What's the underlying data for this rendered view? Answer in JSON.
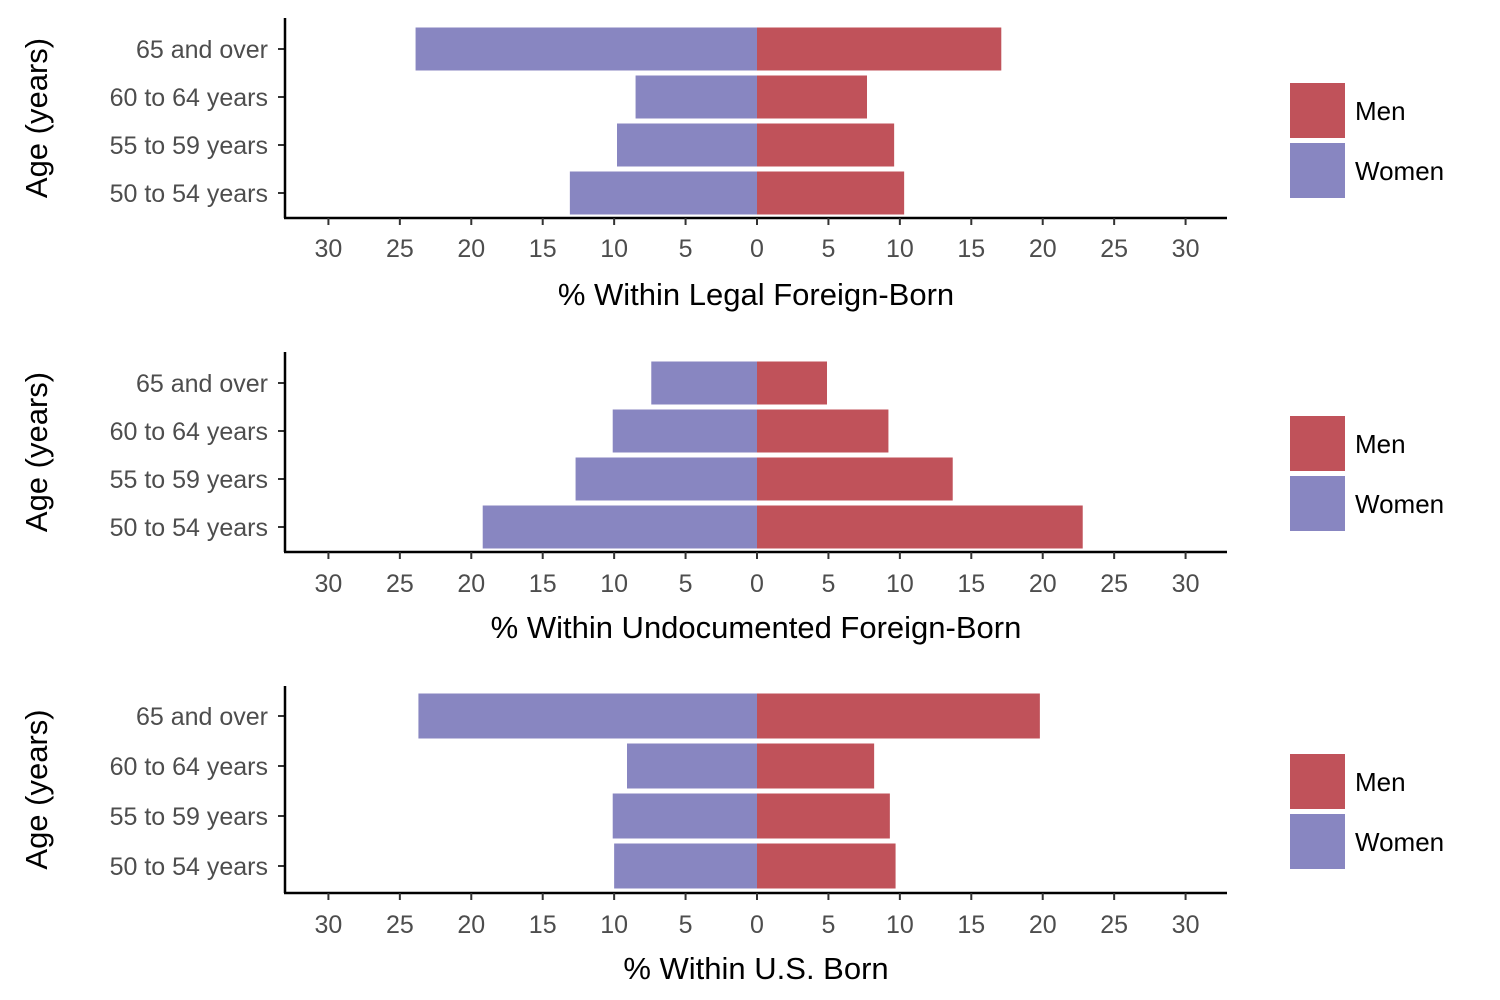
{
  "colors": {
    "men": "#c0525a",
    "women": "#8886c1"
  },
  "chart_data": [
    {
      "type": "bar",
      "orientation": "horizontal-population-pyramid",
      "categories": [
        "50 to 54 years",
        "55 to 59 years",
        "60 to 64 years",
        "65 and over"
      ],
      "series": [
        {
          "name": "Men",
          "values": [
            10.3,
            9.6,
            7.7,
            17.1
          ]
        },
        {
          "name": "Women",
          "values": [
            13.1,
            9.8,
            8.5,
            23.9
          ]
        }
      ],
      "xlabel": "% Within Legal Foreign-Born",
      "ylabel": "Age (years)",
      "xlim": [
        -33,
        33
      ],
      "xticks": [
        -30,
        -25,
        -20,
        -15,
        -10,
        -5,
        0,
        5,
        10,
        15,
        20,
        25,
        30
      ],
      "xtick_labels": [
        "30",
        "25",
        "20",
        "15",
        "10",
        "5",
        "0",
        "5",
        "10",
        "15",
        "20",
        "25",
        "30"
      ],
      "legend": [
        "Men",
        "Women"
      ],
      "legend_position": "right",
      "grid": false
    },
    {
      "type": "bar",
      "orientation": "horizontal-population-pyramid",
      "categories": [
        "50 to 54 years",
        "55 to 59 years",
        "60 to 64 years",
        "65 and over"
      ],
      "series": [
        {
          "name": "Men",
          "values": [
            22.8,
            13.7,
            9.2,
            4.9
          ]
        },
        {
          "name": "Women",
          "values": [
            19.2,
            12.7,
            10.1,
            7.4
          ]
        }
      ],
      "xlabel": "% Within Undocumented Foreign-Born",
      "ylabel": "Age (years)",
      "xlim": [
        -33,
        33
      ],
      "xticks": [
        -30,
        -25,
        -20,
        -15,
        -10,
        -5,
        0,
        5,
        10,
        15,
        20,
        25,
        30
      ],
      "xtick_labels": [
        "30",
        "25",
        "20",
        "15",
        "10",
        "5",
        "0",
        "5",
        "10",
        "15",
        "20",
        "25",
        "30"
      ],
      "legend": [
        "Men",
        "Women"
      ],
      "legend_position": "right",
      "grid": false
    },
    {
      "type": "bar",
      "orientation": "horizontal-population-pyramid",
      "categories": [
        "50 to 54 years",
        "55 to 59 years",
        "60 to 64 years",
        "65 and over"
      ],
      "series": [
        {
          "name": "Men",
          "values": [
            9.7,
            9.3,
            8.2,
            19.8
          ]
        },
        {
          "name": "Women",
          "values": [
            10.0,
            10.1,
            9.1,
            23.7
          ]
        }
      ],
      "xlabel": "% Within U.S. Born",
      "ylabel": "Age (years)",
      "xlim": [
        -33,
        33
      ],
      "xticks": [
        -30,
        -25,
        -20,
        -15,
        -10,
        -5,
        0,
        5,
        10,
        15,
        20,
        25,
        30
      ],
      "xtick_labels": [
        "30",
        "25",
        "20",
        "15",
        "10",
        "5",
        "0",
        "5",
        "10",
        "15",
        "20",
        "25",
        "30"
      ],
      "legend": [
        "Men",
        "Women"
      ],
      "legend_position": "right",
      "grid": false
    }
  ]
}
